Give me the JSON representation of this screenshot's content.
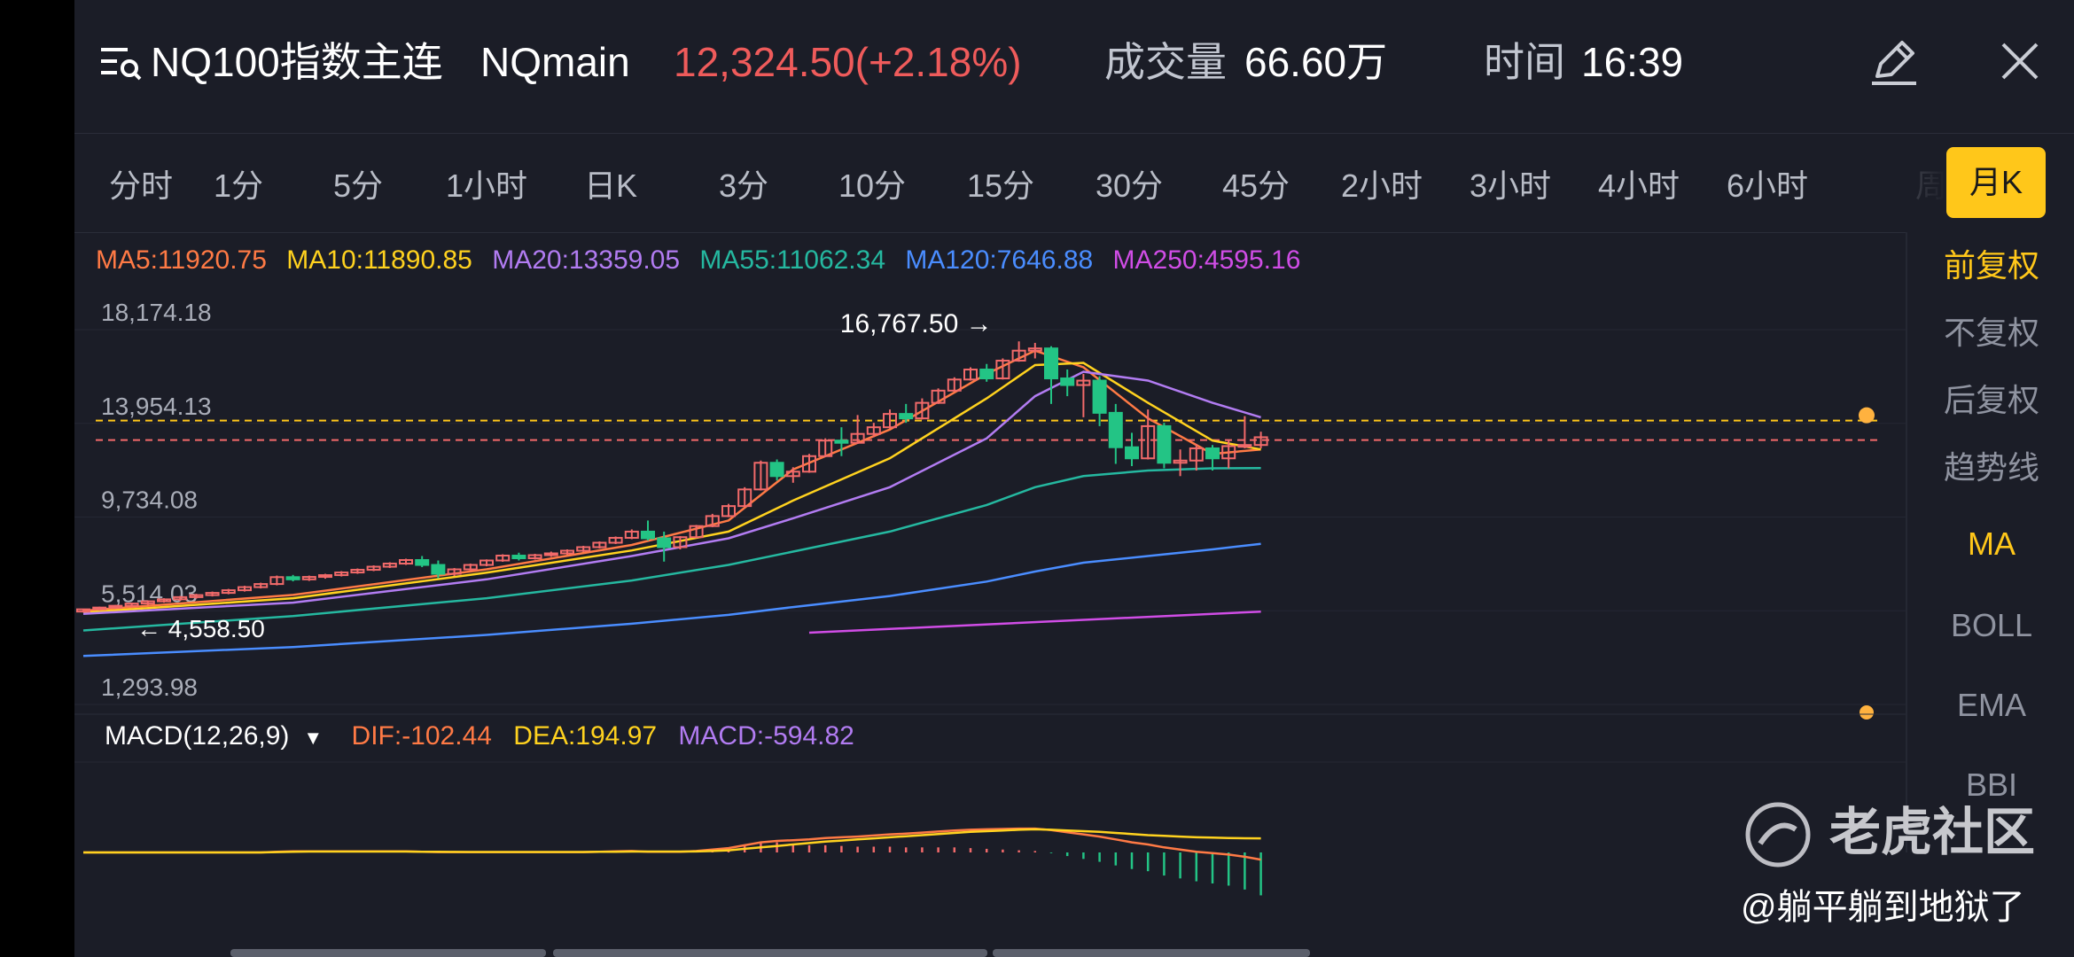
{
  "header": {
    "title": "NQ100指数主连",
    "code": "NQmain",
    "price": "12,324.50(+2.18%)",
    "volume_label": "成交量",
    "volume_value": "66.60万",
    "time_label": "时间",
    "time_value": "16:39",
    "icons": [
      "menu-search-icon",
      "pencil-icon",
      "close-icon"
    ]
  },
  "tabs": [
    "分时",
    "1分",
    "5分",
    "1小时",
    "日K",
    "3分",
    "10分",
    "15分",
    "30分",
    "45分",
    "2小时",
    "3小时",
    "4小时",
    "6小时",
    "周"
  ],
  "active_tab": "月K",
  "ma_legend": [
    {
      "text": "MA5:11920.75",
      "color": "#ff7a45"
    },
    {
      "text": "MA10:11890.85",
      "color": "#ffd21f"
    },
    {
      "text": "MA20:13359.05",
      "color": "#b27cf2"
    },
    {
      "text": "MA55:11062.34",
      "color": "#25b8a0"
    },
    {
      "text": "MA120:7646.88",
      "color": "#4a8dff"
    },
    {
      "text": "MA250:4595.16",
      "color": "#d04de6"
    }
  ],
  "right_panel": {
    "items": [
      "前复权",
      "不复权",
      "后复权",
      "趋势线",
      "MA",
      "BOLL",
      "EMA",
      "BBI"
    ],
    "active_items": [
      "前复权",
      "MA"
    ]
  },
  "macd_legend": {
    "label": "MACD(12,26,9)",
    "dif": "DIF:-102.44",
    "dea": "DEA:194.97",
    "macd": "MACD:-594.82"
  },
  "watermark": "老虎社区",
  "author": "@躺平躺到地狱了",
  "colors": {
    "up": "#f26a6a",
    "down": "#23c485",
    "accent": "#ffc71a",
    "background": "#1b1d27"
  },
  "chart_data": {
    "type": "candlestick",
    "period": "月K",
    "y_tick_labels": [
      "18,174.18",
      "13,954.13",
      "9,734.08",
      "5,514.03",
      "1,293.98"
    ],
    "ylim": [
      1293.98,
      18174.18
    ],
    "max_label": "16,767.50",
    "min_label": "4,558.50",
    "last_price_line": 12324.5,
    "ma10_line": 13200,
    "candles": [
      {
        "o": 4600,
        "h": 4720,
        "l": 4558.5,
        "c": 4700
      },
      {
        "o": 4700,
        "h": 4820,
        "l": 4640,
        "c": 4780
      },
      {
        "o": 4780,
        "h": 4900,
        "l": 4720,
        "c": 4860
      },
      {
        "o": 4860,
        "h": 5000,
        "l": 4800,
        "c": 4960
      },
      {
        "o": 4960,
        "h": 5100,
        "l": 4900,
        "c": 5060
      },
      {
        "o": 5060,
        "h": 5200,
        "l": 5000,
        "c": 5150
      },
      {
        "o": 5150,
        "h": 5300,
        "l": 5080,
        "c": 5250
      },
      {
        "o": 5250,
        "h": 5400,
        "l": 5180,
        "c": 5340
      },
      {
        "o": 5340,
        "h": 5500,
        "l": 5280,
        "c": 5440
      },
      {
        "o": 5440,
        "h": 5620,
        "l": 5380,
        "c": 5560
      },
      {
        "o": 5560,
        "h": 5760,
        "l": 5500,
        "c": 5700
      },
      {
        "o": 5700,
        "h": 5900,
        "l": 5640,
        "c": 5840
      },
      {
        "o": 5840,
        "h": 6220,
        "l": 5780,
        "c": 6150
      },
      {
        "o": 6150,
        "h": 6250,
        "l": 5960,
        "c": 6050
      },
      {
        "o": 6050,
        "h": 6220,
        "l": 5980,
        "c": 6160
      },
      {
        "o": 6160,
        "h": 6300,
        "l": 6080,
        "c": 6240
      },
      {
        "o": 6240,
        "h": 6420,
        "l": 6180,
        "c": 6360
      },
      {
        "o": 6360,
        "h": 6540,
        "l": 6300,
        "c": 6480
      },
      {
        "o": 6480,
        "h": 6680,
        "l": 6420,
        "c": 6620
      },
      {
        "o": 6620,
        "h": 6820,
        "l": 6560,
        "c": 6760
      },
      {
        "o": 6760,
        "h": 6980,
        "l": 6700,
        "c": 6920
      },
      {
        "o": 6920,
        "h": 7100,
        "l": 6600,
        "c": 6700
      },
      {
        "o": 6700,
        "h": 6900,
        "l": 6100,
        "c": 6300
      },
      {
        "o": 6300,
        "h": 6560,
        "l": 6200,
        "c": 6500
      },
      {
        "o": 6500,
        "h": 6760,
        "l": 6440,
        "c": 6700
      },
      {
        "o": 6700,
        "h": 6950,
        "l": 6640,
        "c": 6900
      },
      {
        "o": 6900,
        "h": 7180,
        "l": 6840,
        "c": 7120
      },
      {
        "o": 7120,
        "h": 7250,
        "l": 6900,
        "c": 7000
      },
      {
        "o": 7000,
        "h": 7200,
        "l": 6940,
        "c": 7140
      },
      {
        "o": 7140,
        "h": 7300,
        "l": 7060,
        "c": 7220
      },
      {
        "o": 7220,
        "h": 7400,
        "l": 7160,
        "c": 7340
      },
      {
        "o": 7340,
        "h": 7560,
        "l": 7280,
        "c": 7500
      },
      {
        "o": 7500,
        "h": 7760,
        "l": 7440,
        "c": 7700
      },
      {
        "o": 7700,
        "h": 7980,
        "l": 7640,
        "c": 7920
      },
      {
        "o": 7920,
        "h": 8300,
        "l": 7860,
        "c": 8200
      },
      {
        "o": 8200,
        "h": 8700,
        "l": 7800,
        "c": 7900
      },
      {
        "o": 7900,
        "h": 8200,
        "l": 6850,
        "c": 7500
      },
      {
        "o": 7500,
        "h": 8000,
        "l": 7400,
        "c": 7950
      },
      {
        "o": 7950,
        "h": 8500,
        "l": 7900,
        "c": 8450
      },
      {
        "o": 8450,
        "h": 9000,
        "l": 8400,
        "c": 8900
      },
      {
        "o": 8900,
        "h": 9450,
        "l": 8850,
        "c": 9350
      },
      {
        "o": 9350,
        "h": 10200,
        "l": 9300,
        "c": 10100
      },
      {
        "o": 10100,
        "h": 11400,
        "l": 10050,
        "c": 11300
      },
      {
        "o": 11300,
        "h": 11450,
        "l": 10500,
        "c": 10700
      },
      {
        "o": 10700,
        "h": 11100,
        "l": 10400,
        "c": 10900
      },
      {
        "o": 10900,
        "h": 11700,
        "l": 10850,
        "c": 11600
      },
      {
        "o": 11600,
        "h": 12400,
        "l": 11550,
        "c": 12300
      },
      {
        "o": 12300,
        "h": 12900,
        "l": 11600,
        "c": 12200
      },
      {
        "o": 12200,
        "h": 13450,
        "l": 12150,
        "c": 12600
      },
      {
        "o": 12600,
        "h": 13100,
        "l": 12450,
        "c": 12900
      },
      {
        "o": 12900,
        "h": 13700,
        "l": 12850,
        "c": 13500
      },
      {
        "o": 13500,
        "h": 13950,
        "l": 13100,
        "c": 13300
      },
      {
        "o": 13300,
        "h": 14200,
        "l": 13250,
        "c": 14000
      },
      {
        "o": 14000,
        "h": 14650,
        "l": 13950,
        "c": 14550
      },
      {
        "o": 14550,
        "h": 15150,
        "l": 14500,
        "c": 15050
      },
      {
        "o": 15050,
        "h": 15600,
        "l": 15000,
        "c": 15500
      },
      {
        "o": 15500,
        "h": 15750,
        "l": 14950,
        "c": 15100
      },
      {
        "o": 15100,
        "h": 16000,
        "l": 15050,
        "c": 15900
      },
      {
        "o": 15900,
        "h": 16767.5,
        "l": 15850,
        "c": 16350
      },
      {
        "o": 16350,
        "h": 16700,
        "l": 16000,
        "c": 16450
      },
      {
        "o": 16450,
        "h": 16550,
        "l": 13950,
        "c": 15100
      },
      {
        "o": 15100,
        "h": 15500,
        "l": 14300,
        "c": 14800
      },
      {
        "o": 14800,
        "h": 15300,
        "l": 13350,
        "c": 15000
      },
      {
        "o": 15000,
        "h": 15200,
        "l": 12950,
        "c": 13550
      },
      {
        "o": 13550,
        "h": 13950,
        "l": 11250,
        "c": 12000
      },
      {
        "o": 12000,
        "h": 12650,
        "l": 11150,
        "c": 11500
      },
      {
        "o": 11500,
        "h": 13700,
        "l": 11450,
        "c": 12950
      },
      {
        "o": 12950,
        "h": 13100,
        "l": 11050,
        "c": 11300
      },
      {
        "o": 11300,
        "h": 11900,
        "l": 10700,
        "c": 11400
      },
      {
        "o": 11400,
        "h": 12150,
        "l": 10950,
        "c": 11950
      },
      {
        "o": 11950,
        "h": 12100,
        "l": 10950,
        "c": 11500
      },
      {
        "o": 11500,
        "h": 12350,
        "l": 11050,
        "c": 12050
      },
      {
        "o": 12050,
        "h": 13400,
        "l": 11950,
        "c": 12100
      },
      {
        "o": 12100,
        "h": 12700,
        "l": 11950,
        "c": 12450
      }
    ],
    "ma_lines": [
      {
        "name": "MA5",
        "color": "#ff7a45",
        "x": [
          0,
          13,
          25,
          34,
          40,
          44,
          50,
          56,
          59,
          62,
          66,
          70,
          73
        ],
        "values": [
          4640,
          5350,
          6500,
          7600,
          8700,
          11000,
          12800,
          15300,
          16350,
          15600,
          13300,
          11700,
          11900
        ]
      },
      {
        "name": "MA10",
        "color": "#ffd21f",
        "x": [
          0,
          13,
          25,
          34,
          40,
          44,
          50,
          56,
          59,
          62,
          66,
          70,
          73
        ],
        "values": [
          4560,
          5200,
          6350,
          7350,
          8200,
          9600,
          11500,
          14200,
          15700,
          15800,
          14000,
          12300,
          11900
        ]
      },
      {
        "name": "MA20",
        "color": "#b27cf2",
        "x": [
          0,
          13,
          25,
          34,
          40,
          44,
          50,
          56,
          59,
          62,
          66,
          70,
          73
        ],
        "values": [
          4500,
          5000,
          6050,
          7100,
          7900,
          8800,
          10200,
          12400,
          14300,
          15400,
          15000,
          14000,
          13350
        ]
      },
      {
        "name": "MA55",
        "color": "#25b8a0",
        "x": [
          0,
          13,
          25,
          34,
          40,
          44,
          50,
          56,
          59,
          62,
          66,
          70,
          73
        ],
        "values": [
          3750,
          4400,
          5200,
          6000,
          6700,
          7300,
          8200,
          9400,
          10200,
          10700,
          10950,
          11050,
          11060
        ]
      },
      {
        "name": "MA120",
        "color": "#4a8dff",
        "x": [
          0,
          13,
          25,
          34,
          40,
          44,
          50,
          56,
          59,
          62,
          66,
          70,
          73
        ],
        "values": [
          2600,
          3000,
          3550,
          4050,
          4450,
          4800,
          5300,
          5950,
          6400,
          6800,
          7100,
          7400,
          7650
        ]
      },
      {
        "name": "MA250",
        "color": "#d04de6",
        "x": [
          45,
          73
        ],
        "values": [
          3650,
          4600
        ]
      }
    ],
    "macd": {
      "dif": [
        0,
        0,
        0,
        0,
        0,
        0,
        0,
        0,
        0,
        0,
        0,
        0,
        10,
        15,
        15,
        15,
        15,
        15,
        15,
        15,
        15,
        10,
        5,
        5,
        5,
        5,
        5,
        5,
        5,
        5,
        5,
        5,
        10,
        15,
        20,
        10,
        10,
        10,
        20,
        40,
        60,
        100,
        140,
        160,
        170,
        180,
        200,
        210,
        220,
        235,
        250,
        260,
        275,
        290,
        305,
        315,
        320,
        325,
        330,
        330,
        310,
        280,
        250,
        220,
        180,
        140,
        110,
        70,
        40,
        10,
        -10,
        -30,
        -60,
        -100
      ],
      "dea": [
        0,
        0,
        0,
        0,
        0,
        0,
        0,
        0,
        0,
        0,
        0,
        0,
        5,
        10,
        12,
        12,
        12,
        12,
        12,
        12,
        12,
        10,
        8,
        7,
        6,
        6,
        6,
        6,
        6,
        6,
        6,
        6,
        8,
        10,
        12,
        12,
        12,
        12,
        14,
        20,
        30,
        50,
        70,
        90,
        110,
        130,
        150,
        165,
        180,
        195,
        210,
        225,
        240,
        255,
        270,
        285,
        295,
        305,
        315,
        320,
        315,
        305,
        295,
        285,
        270,
        255,
        240,
        230,
        220,
        210,
        205,
        200,
        197,
        195
      ],
      "hist_colors_note": "red above zero, green below zero",
      "hist": [
        0,
        0,
        0,
        0,
        0,
        0,
        0,
        0,
        0,
        0,
        0,
        0,
        10,
        10,
        6,
        6,
        6,
        6,
        6,
        6,
        6,
        0,
        -6,
        -4,
        -2,
        -2,
        -2,
        -2,
        -2,
        -2,
        -2,
        -2,
        4,
        10,
        16,
        -4,
        -4,
        -4,
        12,
        40,
        60,
        100,
        140,
        140,
        120,
        100,
        100,
        90,
        80,
        80,
        80,
        70,
        70,
        70,
        70,
        60,
        50,
        40,
        30,
        20,
        -10,
        -50,
        -90,
        -130,
        -180,
        -230,
        -260,
        -320,
        -360,
        -400,
        -430,
        -460,
        -514,
        -594.82
      ],
      "ylim": [
        -700,
        700
      ]
    }
  }
}
